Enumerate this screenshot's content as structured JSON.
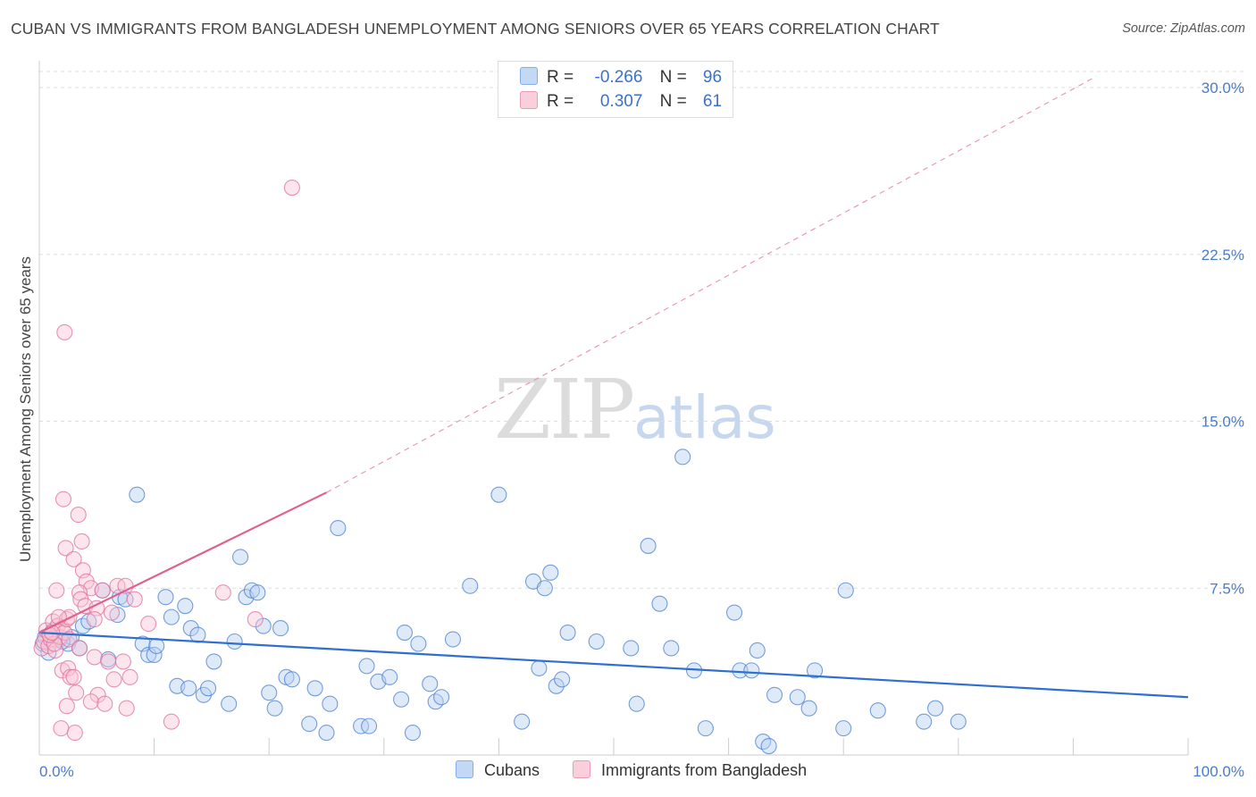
{
  "title": "CUBAN VS IMMIGRANTS FROM BANGLADESH UNEMPLOYMENT AMONG SENIORS OVER 65 YEARS CORRELATION CHART",
  "source": "Source: ZipAtlas.com",
  "watermark": {
    "zip": "ZIP",
    "atlas": "atlas"
  },
  "legend": {
    "rows": [
      {
        "r_label": "R =",
        "r_value": "-0.266",
        "n_label": "N =",
        "n_value": "96",
        "color": "#a9c6ef"
      },
      {
        "r_label": "R =",
        "r_value": "0.307",
        "n_label": "N =",
        "n_value": "61",
        "color": "#f6b8cb"
      }
    ]
  },
  "bottom_legend": [
    {
      "label": "Cubans",
      "color": "#a9c6ef"
    },
    {
      "label": "Immigrants from Bangladesh",
      "color": "#f6b8cb"
    }
  ],
  "chart_data": {
    "type": "scatter",
    "title": "CUBAN VS IMMIGRANTS FROM BANGLADESH UNEMPLOYMENT AMONG SENIORS OVER 65 YEARS CORRELATION CHART",
    "xlabel": "",
    "ylabel": "Unemployment Among Seniors over 65 years",
    "xlim": [
      0,
      100
    ],
    "ylim": [
      0,
      30
    ],
    "x_tick_labels": [
      "0.0%",
      "100.0%"
    ],
    "y_ticks": [
      7.5,
      15.0,
      22.5,
      30.0
    ],
    "y_tick_labels": [
      "7.5%",
      "15.0%",
      "22.5%",
      "30.0%"
    ],
    "grid": "horizontal dashed",
    "colors": {
      "cubans": "#4a7fd0",
      "bangladesh": "#e0709a",
      "cubans_fill": "#b9d1f2",
      "bangladesh_fill": "#f8c6d5"
    },
    "series": [
      {
        "name": "Cubans",
        "points": [
          [
            0.3,
            5.0
          ],
          [
            0.5,
            5.3
          ],
          [
            0.8,
            4.6
          ],
          [
            1.2,
            5.6
          ],
          [
            1.8,
            5.2
          ],
          [
            2.5,
            5.0
          ],
          [
            2.8,
            5.3
          ],
          [
            3.5,
            4.8
          ],
          [
            3.8,
            5.8
          ],
          [
            4.3,
            6.0
          ],
          [
            5.5,
            7.4
          ],
          [
            6.0,
            4.3
          ],
          [
            6.8,
            6.3
          ],
          [
            7.0,
            7.1
          ],
          [
            7.5,
            7.0
          ],
          [
            8.5,
            11.7
          ],
          [
            9.0,
            5.0
          ],
          [
            9.5,
            4.5
          ],
          [
            10.0,
            4.5
          ],
          [
            10.2,
            4.9
          ],
          [
            11.0,
            7.1
          ],
          [
            11.5,
            6.2
          ],
          [
            12.0,
            3.1
          ],
          [
            12.7,
            6.7
          ],
          [
            13.0,
            3.0
          ],
          [
            13.2,
            5.7
          ],
          [
            13.8,
            5.4
          ],
          [
            14.3,
            2.7
          ],
          [
            14.7,
            3.0
          ],
          [
            15.2,
            4.2
          ],
          [
            16.5,
            2.3
          ],
          [
            17.0,
            5.1
          ],
          [
            17.5,
            8.9
          ],
          [
            18.0,
            7.1
          ],
          [
            18.5,
            7.4
          ],
          [
            19.0,
            7.3
          ],
          [
            19.5,
            5.8
          ],
          [
            20.0,
            2.8
          ],
          [
            20.5,
            2.1
          ],
          [
            21.0,
            5.7
          ],
          [
            21.5,
            3.5
          ],
          [
            22.0,
            3.4
          ],
          [
            23.5,
            1.4
          ],
          [
            24.0,
            3.0
          ],
          [
            25.0,
            1.0
          ],
          [
            25.3,
            2.3
          ],
          [
            26.0,
            10.2
          ],
          [
            28.0,
            1.3
          ],
          [
            28.7,
            1.3
          ],
          [
            28.5,
            4.0
          ],
          [
            29.5,
            3.3
          ],
          [
            30.5,
            3.5
          ],
          [
            31.5,
            2.5
          ],
          [
            31.8,
            5.5
          ],
          [
            32.5,
            1.0
          ],
          [
            33.0,
            5.0
          ],
          [
            34.0,
            3.2
          ],
          [
            34.5,
            2.4
          ],
          [
            35.0,
            2.6
          ],
          [
            36.0,
            5.2
          ],
          [
            37.5,
            7.6
          ],
          [
            40.0,
            11.7
          ],
          [
            42.0,
            1.5
          ],
          [
            43.0,
            7.8
          ],
          [
            43.5,
            3.9
          ],
          [
            44.0,
            7.5
          ],
          [
            44.5,
            8.2
          ],
          [
            45.0,
            3.1
          ],
          [
            45.5,
            3.4
          ],
          [
            46.0,
            5.5
          ],
          [
            48.5,
            5.1
          ],
          [
            51.5,
            4.8
          ],
          [
            52.0,
            2.3
          ],
          [
            53.0,
            9.4
          ],
          [
            54.0,
            6.8
          ],
          [
            55.0,
            4.8
          ],
          [
            57.0,
            3.8
          ],
          [
            58.0,
            1.2
          ],
          [
            60.5,
            6.4
          ],
          [
            61.0,
            3.8
          ],
          [
            62.0,
            3.8
          ],
          [
            62.5,
            4.7
          ],
          [
            63.0,
            0.6
          ],
          [
            63.5,
            0.4
          ],
          [
            64.0,
            2.7
          ],
          [
            66.0,
            2.6
          ],
          [
            67.0,
            2.1
          ],
          [
            67.5,
            3.8
          ],
          [
            70.0,
            1.2
          ],
          [
            70.2,
            7.4
          ],
          [
            73.0,
            2.0
          ],
          [
            77.0,
            1.5
          ],
          [
            78.0,
            2.1
          ],
          [
            80.0,
            1.5
          ],
          [
            56.0,
            13.4
          ],
          [
            2.0,
            5.1
          ]
        ],
        "trend": {
          "x": [
            0,
            100
          ],
          "y": [
            5.5,
            2.6
          ]
        }
      },
      {
        "name": "Immigrants from Bangladesh",
        "points": [
          [
            0.2,
            4.8
          ],
          [
            0.4,
            5.1
          ],
          [
            0.6,
            5.6
          ],
          [
            0.8,
            4.9
          ],
          [
            1.0,
            5.2
          ],
          [
            1.2,
            6.0
          ],
          [
            1.4,
            4.7
          ],
          [
            1.5,
            7.4
          ],
          [
            1.6,
            5.8
          ],
          [
            1.8,
            5.3
          ],
          [
            2.0,
            5.7
          ],
          [
            2.2,
            5.5
          ],
          [
            2.4,
            6.1
          ],
          [
            2.6,
            5.2
          ],
          [
            2.2,
            19.0
          ],
          [
            2.1,
            11.5
          ],
          [
            3.4,
            10.8
          ],
          [
            3.7,
            9.6
          ],
          [
            2.3,
            9.3
          ],
          [
            3.0,
            8.8
          ],
          [
            3.8,
            8.3
          ],
          [
            4.1,
            7.8
          ],
          [
            4.5,
            7.5
          ],
          [
            3.5,
            7.3
          ],
          [
            3.6,
            7.0
          ],
          [
            5.5,
            7.4
          ],
          [
            6.8,
            7.6
          ],
          [
            7.5,
            7.6
          ],
          [
            8.3,
            7.0
          ],
          [
            4.0,
            6.7
          ],
          [
            5.0,
            6.6
          ],
          [
            6.3,
            6.4
          ],
          [
            2.6,
            6.2
          ],
          [
            1.7,
            6.2
          ],
          [
            4.8,
            6.1
          ],
          [
            9.5,
            5.9
          ],
          [
            1.3,
            5.0
          ],
          [
            3.5,
            4.8
          ],
          [
            4.8,
            4.4
          ],
          [
            6.0,
            4.2
          ],
          [
            7.3,
            4.2
          ],
          [
            2.0,
            3.8
          ],
          [
            2.5,
            3.9
          ],
          [
            2.7,
            3.5
          ],
          [
            3.0,
            3.5
          ],
          [
            6.5,
            3.4
          ],
          [
            7.9,
            3.5
          ],
          [
            3.2,
            2.8
          ],
          [
            5.1,
            2.7
          ],
          [
            2.4,
            2.2
          ],
          [
            4.5,
            2.4
          ],
          [
            5.7,
            2.3
          ],
          [
            7.6,
            2.1
          ],
          [
            1.9,
            1.2
          ],
          [
            3.1,
            1.0
          ],
          [
            11.5,
            1.5
          ],
          [
            16.0,
            7.3
          ],
          [
            18.8,
            6.1
          ],
          [
            22.0,
            25.5
          ],
          [
            0.9,
            5.4
          ],
          [
            1.1,
            5.5
          ]
        ],
        "trend": {
          "x": [
            0,
            25
          ],
          "y": [
            5.5,
            11.8
          ]
        },
        "trend_extension": {
          "x": [
            25,
            92
          ],
          "y": [
            11.8,
            30.5
          ]
        }
      }
    ]
  }
}
